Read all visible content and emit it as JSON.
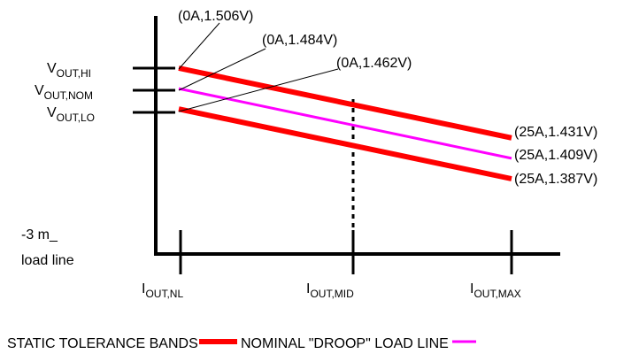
{
  "colors": {
    "tolerance": "#ff0000",
    "nominal": "#ff00ff",
    "axis": "#000000",
    "leader": "#000000"
  },
  "y_labels": [
    {
      "main": "V",
      "sub": "OUT,HI"
    },
    {
      "main": "V",
      "sub": "OUT,NOM"
    },
    {
      "main": "V",
      "sub": "OUT,LO"
    }
  ],
  "x_labels": [
    {
      "main": "I",
      "sub": "OUT,NL"
    },
    {
      "main": "I",
      "sub": "OUT,MID"
    },
    {
      "main": "I",
      "sub": "OUT,MAX"
    }
  ],
  "left_note": [
    "-3 m_",
    "load line"
  ],
  "chart_data": {
    "type": "line",
    "series": [
      {
        "role": "tolerance-upper",
        "points": [
          [
            0,
            1.506
          ],
          [
            25,
            1.431
          ]
        ]
      },
      {
        "role": "nominal",
        "points": [
          [
            0,
            1.484
          ],
          [
            25,
            1.409
          ]
        ]
      },
      {
        "role": "tolerance-lower",
        "points": [
          [
            0,
            1.462
          ],
          [
            25,
            1.387
          ]
        ]
      }
    ],
    "start_annotations": [
      "(0A,1.506V)",
      "(0A,1.484V)",
      "(0A,1.462V)"
    ],
    "end_annotations": [
      "(25A,1.431V)",
      "(25A,1.409V)",
      "(25A,1.387V)"
    ]
  },
  "legend": {
    "tolerance_label": "STATIC TOLERANCE BANDS",
    "nominal_label": "NOMINAL \"DROOP\" LOAD LINE"
  }
}
